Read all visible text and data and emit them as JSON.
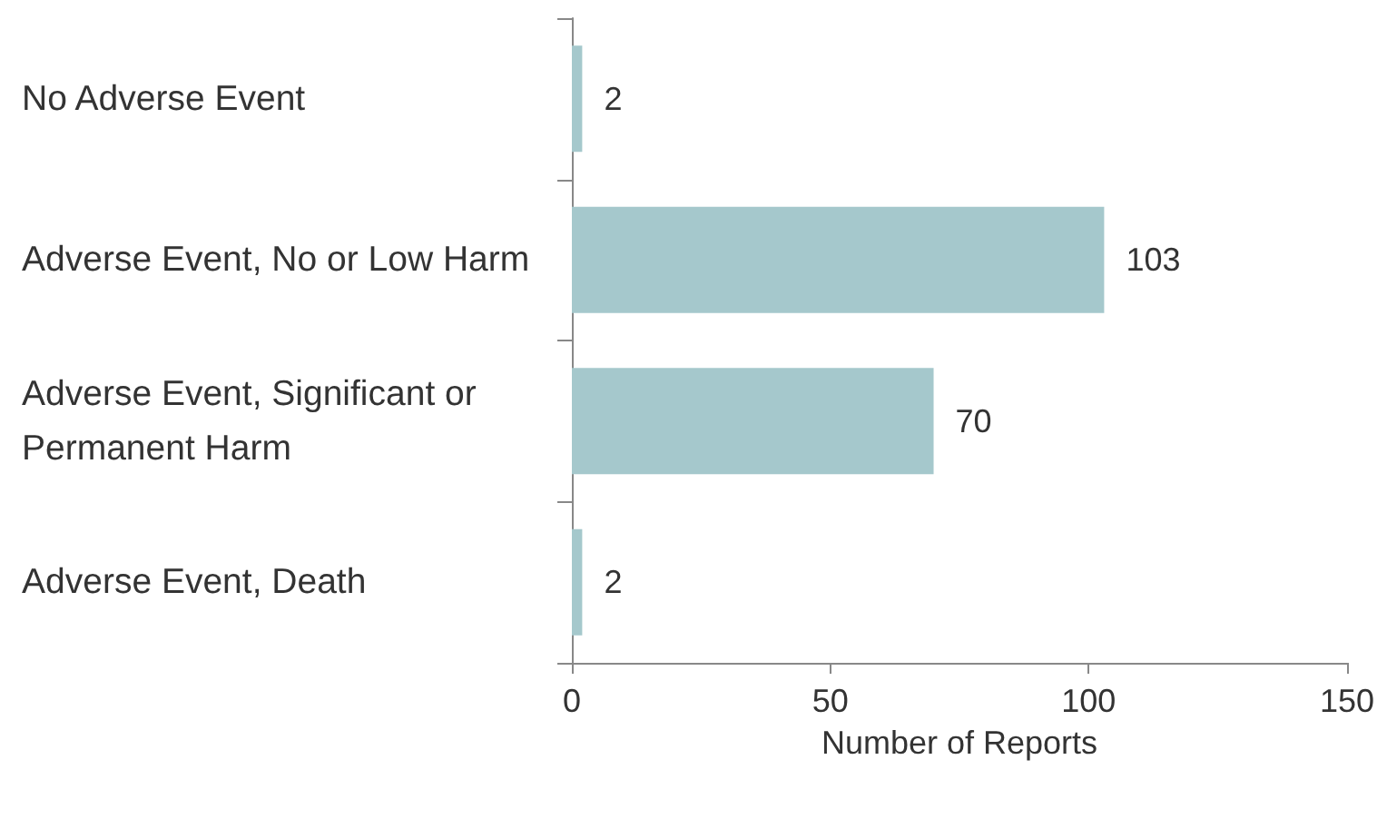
{
  "chart_data": {
    "type": "bar",
    "orientation": "horizontal",
    "xlabel": "Number of Reports",
    "categories": [
      "No Adverse Event",
      "Adverse Event, No or Low Harm",
      "Adverse Event, Significant or Permanent Harm",
      "Adverse Event, Death"
    ],
    "values": [
      2,
      103,
      70,
      2
    ],
    "color": "#a5c8cc",
    "data_labels": true,
    "xlim": [
      0,
      150
    ],
    "xticks": [
      0,
      50,
      100,
      150
    ]
  }
}
